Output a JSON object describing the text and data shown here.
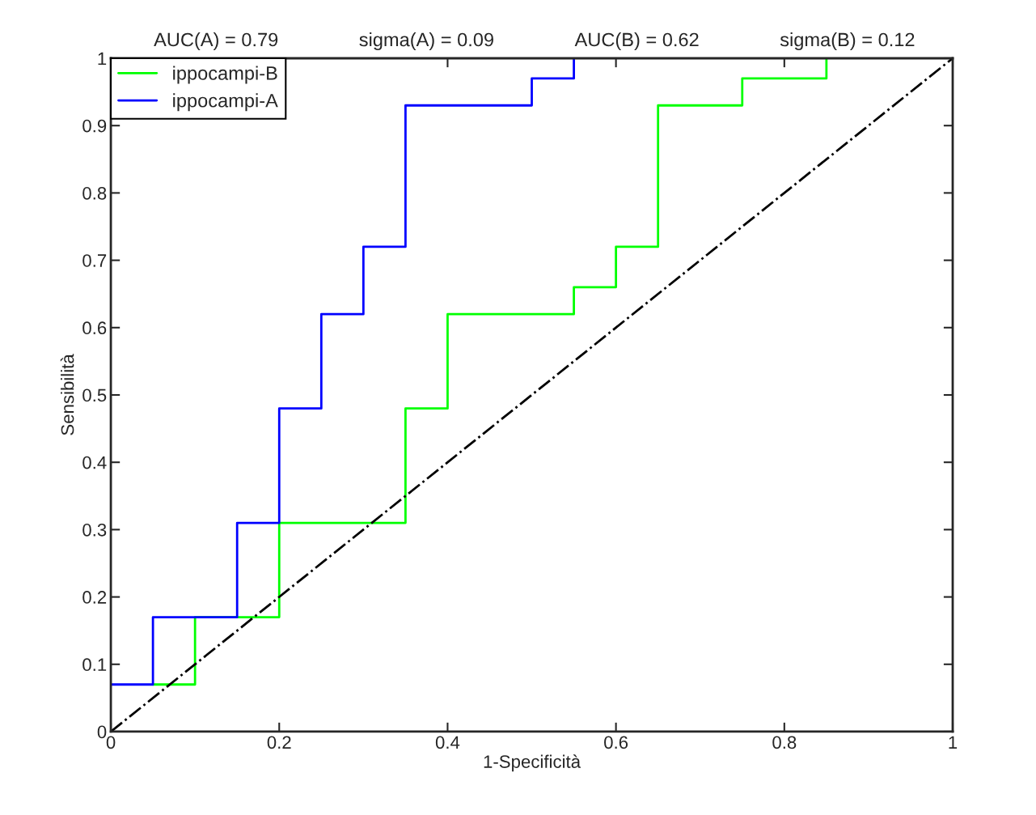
{
  "chart_data": {
    "type": "step",
    "xlabel": "1-Specificità",
    "ylabel": "Sensibilità",
    "annotations": [
      "AUC(A) = 0.79",
      "sigma(A) = 0.09",
      "AUC(B) = 0.62",
      "sigma(B) = 0.12"
    ],
    "series": [
      {
        "name": "ippocampi-B",
        "color": "#00ff00",
        "x": [
          0.05,
          0.1,
          0.2,
          0.35,
          0.4,
          0.55,
          0.6,
          0.65,
          0.75,
          0.85
        ],
        "values": [
          0.07,
          0.17,
          0.31,
          0.48,
          0.62,
          0.66,
          0.72,
          0.93,
          0.97,
          1.0
        ]
      },
      {
        "name": "ippocampi-A",
        "color": "#0000ff",
        "x": [
          0,
          0.05,
          0.15,
          0.2,
          0.25,
          0.3,
          0.35,
          0.5,
          0.55
        ],
        "values": [
          0.07,
          0.17,
          0.31,
          0.48,
          0.62,
          0.72,
          0.93,
          0.97,
          1.0
        ]
      },
      {
        "type": "line",
        "color": "#000000",
        "line_style": "dashdot",
        "x": [
          0,
          1
        ],
        "values": [
          0,
          1
        ]
      }
    ],
    "xlim": [
      0,
      1
    ],
    "ylim": [
      0,
      1
    ],
    "xticks": [
      0,
      0.2,
      0.4,
      0.6,
      0.8,
      1
    ],
    "yticks": [
      0,
      0.1,
      0.2,
      0.3,
      0.4,
      0.5,
      0.6,
      0.7,
      0.8,
      0.9,
      1
    ],
    "grid": false,
    "legend": "top left"
  }
}
